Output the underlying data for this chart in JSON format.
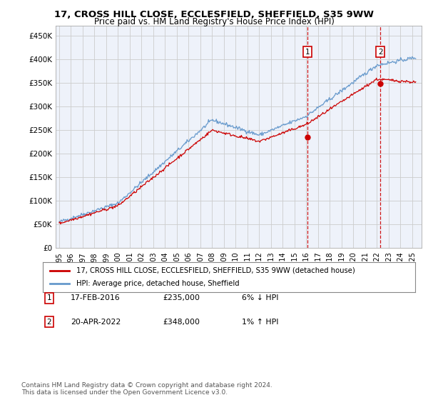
{
  "title": "17, CROSS HILL CLOSE, ECCLESFIELD, SHEFFIELD, S35 9WW",
  "subtitle": "Price paid vs. HM Land Registry's House Price Index (HPI)",
  "ylabel_ticks": [
    "£0",
    "£50K",
    "£100K",
    "£150K",
    "£200K",
    "£250K",
    "£300K",
    "£350K",
    "£400K",
    "£450K"
  ],
  "ytick_values": [
    0,
    50000,
    100000,
    150000,
    200000,
    250000,
    300000,
    350000,
    400000,
    450000
  ],
  "ylim": [
    0,
    470000
  ],
  "purchase1": {
    "date_num": 2016.12,
    "price": 235000,
    "label": "1",
    "date_str": "17-FEB-2016",
    "pct": "6%",
    "dir": "↓"
  },
  "purchase2": {
    "date_num": 2022.3,
    "price": 348000,
    "label": "2",
    "date_str": "20-APR-2022",
    "pct": "1%",
    "dir": "↑"
  },
  "legend_property": "17, CROSS HILL CLOSE, ECCLESFIELD, SHEFFIELD, S35 9WW (detached house)",
  "legend_hpi": "HPI: Average price, detached house, Sheffield",
  "footnote": "Contains HM Land Registry data © Crown copyright and database right 2024.\nThis data is licensed under the Open Government Licence v3.0.",
  "property_color": "#cc0000",
  "hpi_color": "#6699cc",
  "background_color": "#eef2fa",
  "grid_color": "#cccccc",
  "title_fontsize": 9.5,
  "subtitle_fontsize": 8.5
}
